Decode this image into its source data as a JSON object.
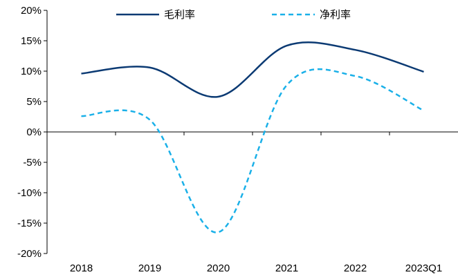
{
  "chart_data": {
    "type": "line",
    "categories": [
      "2018",
      "2019",
      "2020",
      "2021",
      "2022",
      "2023Q1"
    ],
    "ylim": [
      -20,
      20
    ],
    "yticks": [
      20,
      15,
      10,
      5,
      0,
      -5,
      -10,
      -15,
      -20
    ],
    "ytick_labels": [
      "20%",
      "15%",
      "10%",
      "5%",
      "0%",
      "-5%",
      "-10%",
      "-15%",
      "-20%"
    ],
    "grid": false,
    "legend_position": "top",
    "series": [
      {
        "name": "毛利率",
        "values": [
          9.6,
          10.6,
          5.8,
          14.2,
          13.5,
          9.9
        ],
        "color": "#0b3a73",
        "style": "solid"
      },
      {
        "name": "净利率",
        "values": [
          2.6,
          2.0,
          -16.5,
          7.7,
          9.2,
          3.5
        ],
        "color": "#1ab0e8",
        "style": "dashed"
      }
    ]
  }
}
